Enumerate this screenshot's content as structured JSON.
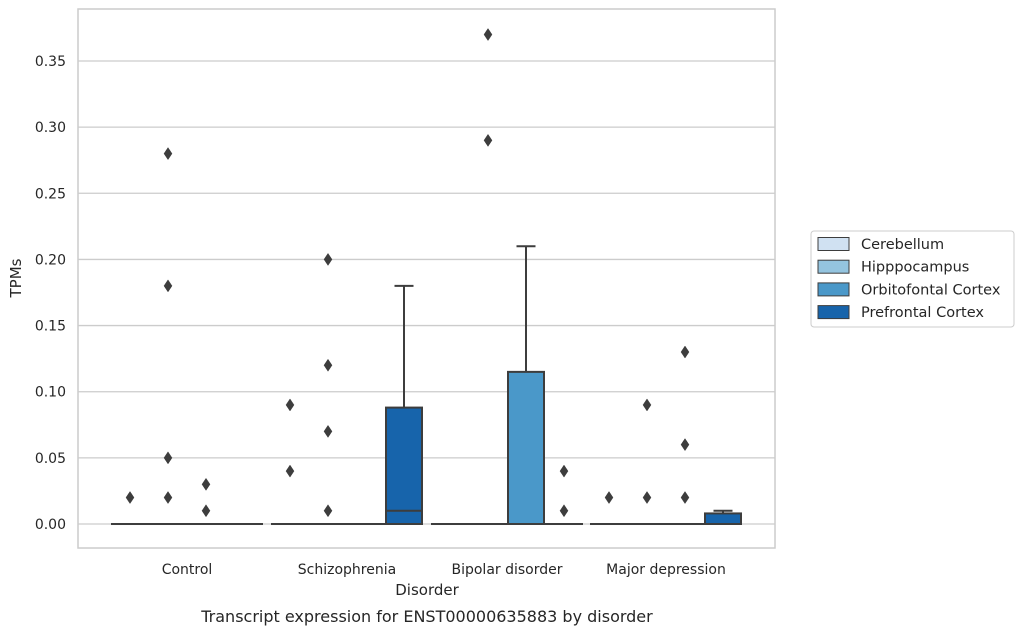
{
  "chart_data": {
    "type": "box",
    "xlabel": "Disorder",
    "ylabel": "TPMs",
    "caption": "Transcript expression for ENST00000635883 by disorder",
    "ylim": [
      -0.018,
      0.389
    ],
    "yticks": [
      0.0,
      0.05,
      0.1,
      0.15,
      0.2,
      0.25,
      0.3,
      0.35
    ],
    "ytick_labels": [
      "0.00",
      "0.05",
      "0.10",
      "0.15",
      "0.20",
      "0.25",
      "0.30",
      "0.35"
    ],
    "grid": "horizontal",
    "legend_position": "center-right-outside",
    "categories": [
      "Control",
      "Schizophrenia",
      "Bipolar disorder",
      "Major depression"
    ],
    "series": [
      {
        "name": "Cerebellum",
        "color": "#d0e1f2",
        "boxes": [
          {
            "q1": 0,
            "median": 0,
            "q3": 0,
            "whisker_low": 0,
            "whisker_high": 0,
            "outliers": [
              0.02
            ]
          },
          {
            "q1": 0,
            "median": 0,
            "q3": 0,
            "whisker_low": 0,
            "whisker_high": 0,
            "outliers": [
              0.04,
              0.09
            ]
          },
          {
            "q1": 0,
            "median": 0,
            "q3": 0,
            "whisker_low": 0,
            "whisker_high": 0,
            "outliers": []
          },
          {
            "q1": 0,
            "median": 0,
            "q3": 0,
            "whisker_low": 0,
            "whisker_high": 0,
            "outliers": [
              0.02
            ]
          }
        ]
      },
      {
        "name": "Hipppocampus",
        "color": "#94c4df",
        "boxes": [
          {
            "q1": 0,
            "median": 0,
            "q3": 0,
            "whisker_low": 0,
            "whisker_high": 0,
            "outliers": [
              0.02,
              0.05,
              0.18,
              0.28
            ]
          },
          {
            "q1": 0,
            "median": 0,
            "q3": 0,
            "whisker_low": 0,
            "whisker_high": 0,
            "outliers": [
              0.01,
              0.07,
              0.12,
              0.2
            ]
          },
          {
            "q1": 0,
            "median": 0,
            "q3": 0,
            "whisker_low": 0,
            "whisker_high": 0,
            "outliers": [
              0.29,
              0.37
            ]
          },
          {
            "q1": 0,
            "median": 0,
            "q3": 0,
            "whisker_low": 0,
            "whisker_high": 0,
            "outliers": [
              0.02,
              0.09
            ]
          }
        ]
      },
      {
        "name": "Orbitofontal Cortex",
        "color": "#4a98c9",
        "boxes": [
          {
            "q1": 0,
            "median": 0,
            "q3": 0,
            "whisker_low": 0,
            "whisker_high": 0,
            "outliers": [
              0.01,
              0.03
            ]
          },
          {
            "q1": 0,
            "median": 0,
            "q3": 0,
            "whisker_low": 0,
            "whisker_high": 0,
            "outliers": []
          },
          {
            "q1": 0,
            "median": 0,
            "q3": 0.115,
            "whisker_low": 0,
            "whisker_high": 0.21,
            "outliers": []
          },
          {
            "q1": 0,
            "median": 0,
            "q3": 0,
            "whisker_low": 0,
            "whisker_high": 0,
            "outliers": [
              0.02,
              0.06,
              0.13
            ]
          }
        ]
      },
      {
        "name": "Prefrontal Cortex",
        "color": "#1764ab",
        "boxes": [
          {
            "q1": 0,
            "median": 0,
            "q3": 0,
            "whisker_low": 0,
            "whisker_high": 0,
            "outliers": []
          },
          {
            "q1": 0,
            "median": 0.01,
            "q3": 0.088,
            "whisker_low": 0,
            "whisker_high": 0.18,
            "outliers": []
          },
          {
            "q1": 0,
            "median": 0,
            "q3": 0,
            "whisker_low": 0,
            "whisker_high": 0,
            "outliers": [
              0.01,
              0.04
            ]
          },
          {
            "q1": 0,
            "median": 0,
            "q3": 0.008,
            "whisker_low": 0,
            "whisker_high": 0.01,
            "outliers": []
          }
        ]
      }
    ]
  }
}
